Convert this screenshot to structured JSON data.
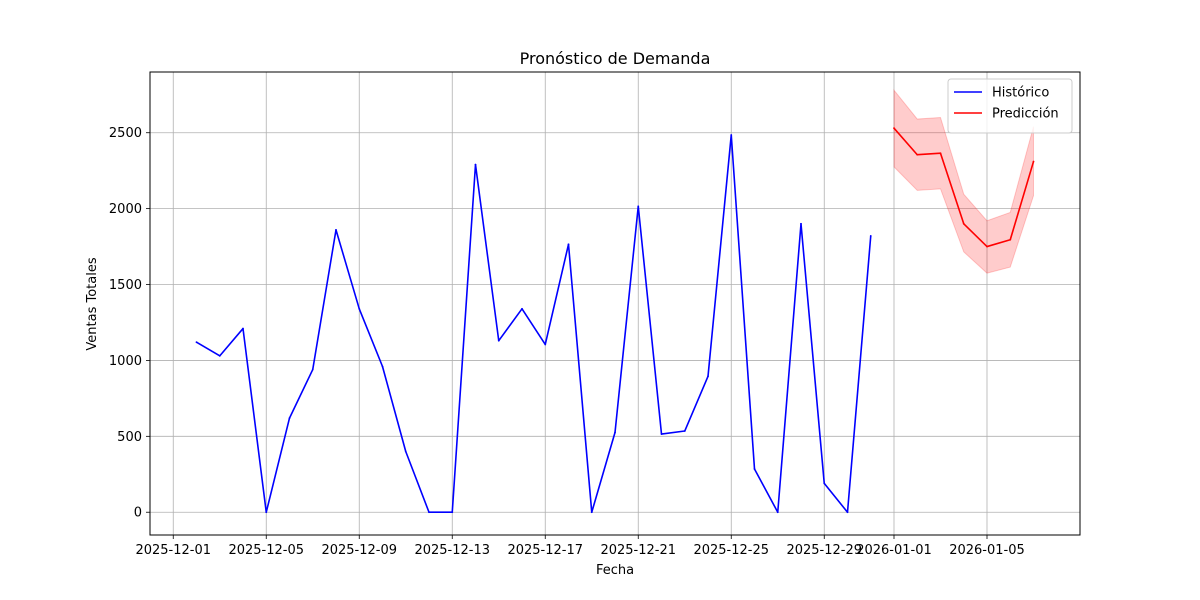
{
  "chart_data": {
    "type": "line",
    "title": "Pronóstico de Demanda",
    "xlabel": "Fecha",
    "ylabel": "Ventas Totales",
    "ylim": [
      -150,
      2900
    ],
    "xlim": [
      "2025-11-30",
      "2026-01-09"
    ],
    "grid": true,
    "legend_placement": "top-right",
    "x_ticks": [
      "2025-12-01",
      "2025-12-05",
      "2025-12-09",
      "2025-12-13",
      "2025-12-17",
      "2025-12-21",
      "2025-12-25",
      "2025-12-29",
      "2026-01-01",
      "2026-01-05"
    ],
    "y_ticks": [
      0,
      500,
      1000,
      1500,
      2000,
      2500
    ],
    "series": [
      {
        "name": "Histórico",
        "color": "#0000ff",
        "x": [
          "2025-12-02",
          "2025-12-03",
          "2025-12-04",
          "2025-12-05",
          "2025-12-06",
          "2025-12-07",
          "2025-12-08",
          "2025-12-09",
          "2025-12-10",
          "2025-12-11",
          "2025-12-12",
          "2025-12-13",
          "2025-12-14",
          "2025-12-15",
          "2025-12-16",
          "2025-12-17",
          "2025-12-18",
          "2025-12-19",
          "2025-12-20",
          "2025-12-21",
          "2025-12-22",
          "2025-12-23",
          "2025-12-24",
          "2025-12-25",
          "2025-12-26",
          "2025-12-27",
          "2025-12-28",
          "2025-12-29",
          "2025-12-30",
          "2025-12-31"
        ],
        "values": [
          1120,
          1030,
          1210,
          0,
          620,
          940,
          1860,
          1340,
          960,
          400,
          0,
          0,
          2290,
          1130,
          1340,
          1105,
          1765,
          0,
          525,
          2015,
          515,
          535,
          895,
          2485,
          285,
          0,
          1900,
          190,
          0,
          1820
        ]
      },
      {
        "name": "Predicción",
        "color": "#ff0000",
        "x": [
          "2026-01-01",
          "2026-01-02",
          "2026-01-03",
          "2026-01-04",
          "2026-01-05",
          "2026-01-06",
          "2026-01-07"
        ],
        "values": [
          2530,
          2355,
          2365,
          1900,
          1750,
          1795,
          2310
        ],
        "lower": [
          2275,
          2120,
          2130,
          1715,
          1575,
          1615,
          2085
        ],
        "upper": [
          2780,
          2590,
          2600,
          2095,
          1920,
          1975,
          2540
        ],
        "band_color": "#ff0000"
      }
    ]
  }
}
